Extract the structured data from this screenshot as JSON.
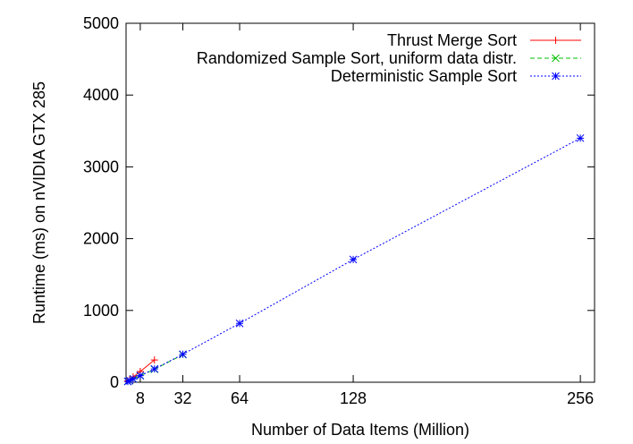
{
  "chart_data": {
    "type": "line",
    "title": "",
    "xlabel": "Number of Data Items (Million)",
    "ylabel": "Runtime (ms) on nVIDIA GTX 285",
    "xlim": [
      0,
      264
    ],
    "ylim": [
      0,
      5000
    ],
    "xticks": [
      8,
      32,
      64,
      128,
      256
    ],
    "yticks": [
      0,
      1000,
      2000,
      3000,
      4000,
      5000
    ],
    "grid": false,
    "legend_position": "top-right",
    "series": [
      {
        "name": "Thrust Merge Sort",
        "color": "#ff0000",
        "marker": "plus",
        "dash": "solid",
        "x": [
          1,
          2,
          4,
          8,
          16
        ],
        "y": [
          18,
          37,
          75,
          150,
          310
        ]
      },
      {
        "name": "Randomized Sample Sort, uniform data distr.",
        "color": "#00c000",
        "marker": "cross",
        "dash": "dashed",
        "x": [
          1,
          2,
          4,
          8,
          16,
          32
        ],
        "y": [
          12,
          22,
          45,
          90,
          180,
          385
        ]
      },
      {
        "name": "Deterministic Sample Sort",
        "color": "#0000ff",
        "marker": "star",
        "dash": "dotted",
        "x": [
          1,
          2,
          4,
          8,
          16,
          32,
          64,
          128,
          256
        ],
        "y": [
          11,
          23,
          46,
          92,
          185,
          390,
          820,
          1710,
          3400
        ]
      }
    ]
  }
}
